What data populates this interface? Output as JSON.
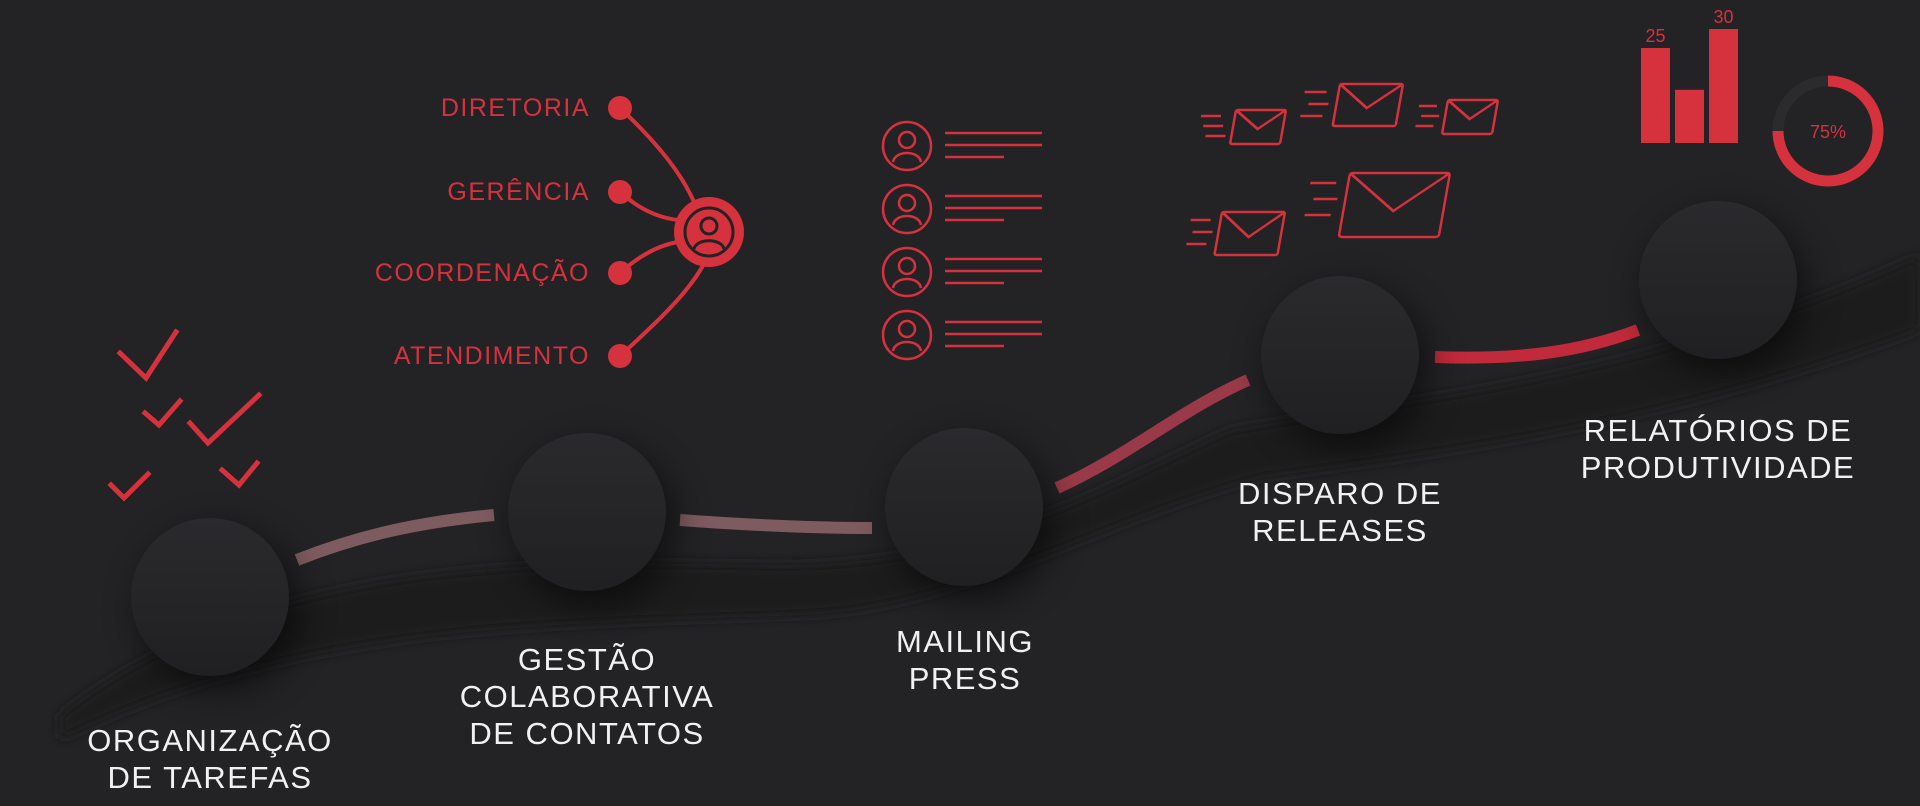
{
  "colors": {
    "background": "#232225",
    "accent": "#d6323e",
    "road": "#1b1a1c",
    "road_line_muted": "#7e5b5f",
    "road_line_active": "#c12a3a",
    "text": "#f1f1f3"
  },
  "steps": [
    {
      "id": "organizacao",
      "lines": [
        "ORGANIZAÇÃO",
        "DE TAREFAS"
      ],
      "icon": "checkmarks-icon"
    },
    {
      "id": "gestao",
      "lines": [
        "GESTÃO",
        "COLABORATIVA",
        "DE CONTATOS"
      ],
      "icon": "org-chart-icon"
    },
    {
      "id": "mailing",
      "lines": [
        "MAILING",
        "PRESS"
      ],
      "icon": "contact-list-icon"
    },
    {
      "id": "disparo",
      "lines": [
        "DISPARO DE",
        "RELEASES"
      ],
      "icon": "flying-envelopes-icon"
    },
    {
      "id": "relatorios",
      "lines": [
        "RELATÓRIOS DE",
        "PRODUTIVIDADE"
      ],
      "icon": "report-charts-icon"
    }
  ],
  "org_chart": {
    "levels": [
      "DIRETORIA",
      "GERÊNCIA",
      "COORDENAÇÃO",
      "ATENDIMENTO"
    ]
  },
  "report": {
    "bars": [
      25,
      14,
      30
    ],
    "bar_max": 30,
    "donut_percent": 75,
    "donut_label": "75%"
  }
}
